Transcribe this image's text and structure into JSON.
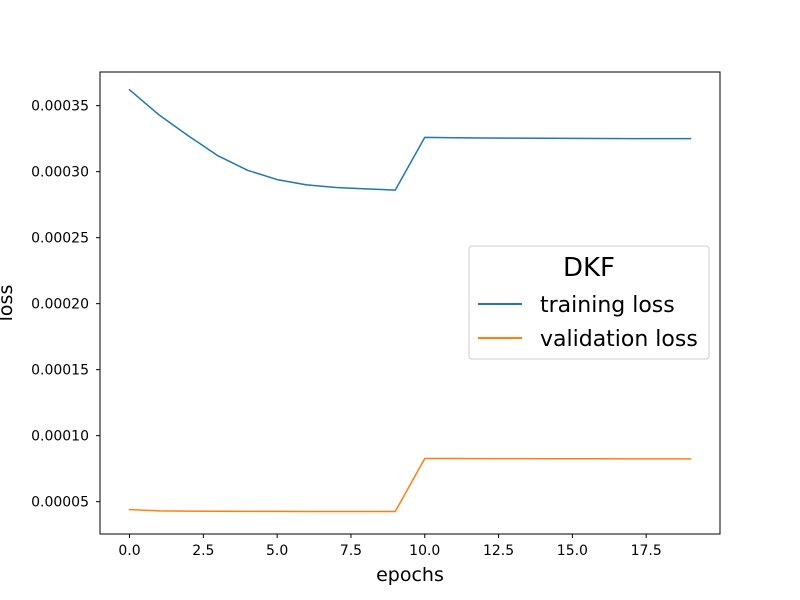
{
  "chart_data": {
    "type": "line",
    "xlabel": "epochs",
    "ylabel": "loss",
    "xlim": [
      -1.0,
      20.0
    ],
    "ylim": [
      2.55e-05,
      0.0003755
    ],
    "xticks": [
      0.0,
      2.5,
      5.0,
      7.5,
      10.0,
      12.5,
      15.0,
      17.5
    ],
    "xtick_labels": [
      "0.0",
      "2.5",
      "5.0",
      "7.5",
      "10.0",
      "12.5",
      "15.0",
      "17.5"
    ],
    "yticks": [
      5e-05,
      0.0001,
      0.00015,
      0.0002,
      0.00025,
      0.0003,
      0.00035
    ],
    "ytick_labels": [
      "0.00005",
      "0.00010",
      "0.00015",
      "0.00020",
      "0.00025",
      "0.00030",
      "0.00035"
    ],
    "grid": false,
    "legend": {
      "title": "DKF",
      "placement": "center-right"
    },
    "x": [
      0,
      1,
      2,
      3,
      4,
      5,
      6,
      7,
      8,
      9,
      10,
      11,
      12,
      13,
      14,
      15,
      16,
      17,
      18,
      19
    ],
    "series": [
      {
        "name": "training loss",
        "color": "#1f77b4",
        "values": [
          0.000362,
          0.000343,
          0.000327,
          0.000312,
          0.000301,
          0.000294,
          0.00029,
          0.000288,
          0.000287,
          0.000286,
          0.000326,
          0.0003257,
          0.0003255,
          0.0003254,
          0.0003253,
          0.0003252,
          0.0003251,
          0.000325,
          0.000325,
          0.000325
        ]
      },
      {
        "name": "validation loss",
        "color": "#ff7f0e",
        "values": [
          4.4e-05,
          4.3e-05,
          4.28e-05,
          4.27e-05,
          4.26e-05,
          4.26e-05,
          4.25e-05,
          4.25e-05,
          4.25e-05,
          4.25e-05,
          8.27e-05,
          8.27e-05,
          8.26e-05,
          8.26e-05,
          8.25e-05,
          8.25e-05,
          8.25e-05,
          8.24e-05,
          8.24e-05,
          8.24e-05
        ]
      }
    ]
  }
}
